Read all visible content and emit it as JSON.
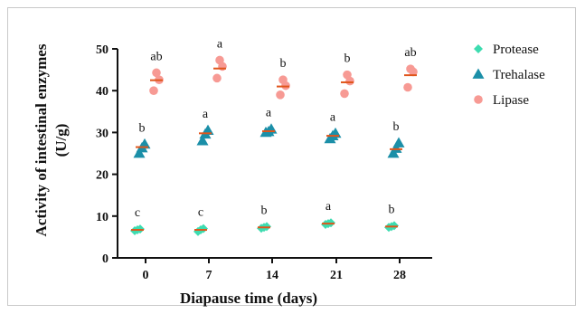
{
  "chart_data": {
    "type": "scatter",
    "xlabel": "Diapause time (days)",
    "ylabel": "Activity of intestinal enzymes",
    "ylabel_unit": "(U/g)",
    "categories": [
      "0",
      "7",
      "14",
      "21",
      "28"
    ],
    "ylim": [
      0,
      50
    ],
    "yticks": [
      "0",
      "10",
      "20",
      "30",
      "40",
      "50"
    ],
    "legend_position": "right",
    "grid": false,
    "colors": {
      "protease": "#3ddcb0",
      "trehalase": "#1b8fa8",
      "lipase": "#f79a94",
      "mean_line": "#e0551b"
    },
    "series": [
      {
        "name": "Protease",
        "marker": "diamond",
        "color": "#3ddcb0",
        "means": [
          6.7,
          6.7,
          7.3,
          8.2,
          7.5
        ],
        "letters": [
          "c",
          "c",
          "b",
          "a",
          "b"
        ],
        "points": [
          [
            6.5,
            6.9,
            6.7
          ],
          [
            6.3,
            7.0,
            6.7
          ],
          [
            7.1,
            7.5,
            7.3
          ],
          [
            8.0,
            8.4,
            8.2
          ],
          [
            7.3,
            7.7,
            7.5
          ]
        ]
      },
      {
        "name": "Trehalase",
        "marker": "triangle",
        "color": "#1b8fa8",
        "means": [
          26.5,
          29.8,
          30.3,
          29.2,
          26.0
        ],
        "letters": [
          "b",
          "a",
          "a",
          "a",
          "b"
        ],
        "points": [
          [
            25.0,
            27.2,
            26.3
          ],
          [
            28.0,
            30.5,
            29.6
          ],
          [
            30.0,
            30.8,
            30.2
          ],
          [
            28.5,
            29.8,
            29.2
          ],
          [
            25.0,
            27.5,
            26.2
          ]
        ]
      },
      {
        "name": "Lipase",
        "marker": "circle",
        "color": "#f79a94",
        "means": [
          42.5,
          45.3,
          41.0,
          42.0,
          43.7
        ],
        "letters": [
          "ab",
          "a",
          "b",
          "b",
          "ab"
        ],
        "points": [
          [
            40.0,
            42.6,
            44.3
          ],
          [
            43.0,
            45.8,
            47.3
          ],
          [
            39.0,
            41.2,
            42.6
          ],
          [
            39.3,
            42.3,
            43.8
          ],
          [
            40.8,
            44.5,
            45.2
          ]
        ]
      }
    ]
  }
}
